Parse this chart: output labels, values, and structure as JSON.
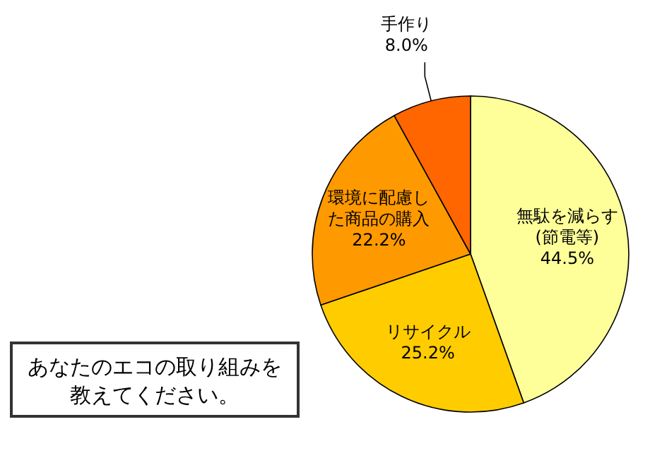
{
  "chart_data": {
    "type": "pie",
    "title": "あなたのエコの取り組みを教えてください。",
    "categories": [
      "無駄を減らす(節電等)",
      "リサイクル",
      "環境に配慮した商品の購入",
      "手作り"
    ],
    "values": [
      44.5,
      25.2,
      22.2,
      8.0
    ],
    "value_labels": [
      "44.5%",
      "25.2%",
      "22.2%",
      "8.0%"
    ],
    "colors": [
      "#ffff99",
      "#ffcc00",
      "#ff9900",
      "#ff6600"
    ]
  }
}
